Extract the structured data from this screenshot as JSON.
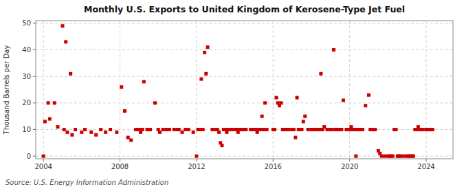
{
  "chart_data": {
    "type": "scatter",
    "title": "Monthly U.S. Exports to United Kingdom of Kerosene-Type Jet Fuel",
    "ylabel": "Thousand Barrels per Day",
    "source": "Source: U.S. Energy Information Administration",
    "color": "#cc0000",
    "marker": "square",
    "grid": true,
    "xlim": [
      2003.6,
      2025.4
    ],
    "ylim": [
      -1,
      51
    ],
    "xticks": [
      2004,
      2008,
      2012,
      2016,
      2020,
      2024
    ],
    "yticks": [
      0,
      10,
      20,
      30,
      40,
      50
    ],
    "x": [
      2004.0,
      2004.08,
      2004.25,
      2004.33,
      2004.58,
      2004.75,
      2005.0,
      2005.08,
      2005.17,
      2005.25,
      2005.42,
      2005.5,
      2005.67,
      2006.0,
      2006.17,
      2006.5,
      2006.75,
      2007.0,
      2007.25,
      2007.5,
      2007.83,
      2008.08,
      2008.25,
      2008.42,
      2008.58,
      2008.83,
      2009.0,
      2009.08,
      2009.17,
      2009.25,
      2009.42,
      2009.58,
      2009.83,
      2010.0,
      2010.08,
      2010.25,
      2010.42,
      2010.58,
      2010.83,
      2011.0,
      2011.08,
      2011.25,
      2011.42,
      2011.58,
      2011.83,
      2012.0,
      2012.08,
      2012.17,
      2012.25,
      2012.33,
      2012.42,
      2012.5,
      2012.58,
      2012.83,
      2013.0,
      2013.08,
      2013.17,
      2013.25,
      2013.33,
      2013.42,
      2013.5,
      2013.58,
      2013.67,
      2013.83,
      2014.0,
      2014.08,
      2014.17,
      2014.25,
      2014.42,
      2014.5,
      2014.58,
      2014.83,
      2015.0,
      2015.08,
      2015.17,
      2015.25,
      2015.33,
      2015.42,
      2015.5,
      2015.58,
      2015.67,
      2016.0,
      2016.08,
      2016.17,
      2016.25,
      2016.33,
      2016.42,
      2016.5,
      2016.58,
      2016.67,
      2016.83,
      2017.0,
      2017.08,
      2017.17,
      2017.25,
      2017.33,
      2017.42,
      2017.5,
      2017.58,
      2017.67,
      2017.83,
      2018.0,
      2018.08,
      2018.17,
      2018.25,
      2018.33,
      2018.42,
      2018.5,
      2018.58,
      2018.67,
      2018.83,
      2019.0,
      2019.08,
      2019.17,
      2019.25,
      2019.33,
      2019.42,
      2019.5,
      2019.58,
      2019.67,
      2019.83,
      2020.0,
      2020.08,
      2020.17,
      2020.25,
      2020.33,
      2020.42,
      2020.5,
      2020.58,
      2020.67,
      2020.83,
      2021.0,
      2021.08,
      2021.25,
      2021.33,
      2021.5,
      2021.58,
      2021.67,
      2021.83,
      2022.0,
      2022.08,
      2022.17,
      2022.25,
      2022.33,
      2022.42,
      2022.5,
      2022.58,
      2022.67,
      2022.83,
      2023.0,
      2023.08,
      2023.17,
      2023.25,
      2023.33,
      2023.42,
      2023.5,
      2023.58,
      2023.67,
      2023.83,
      2024.0,
      2024.08,
      2024.17,
      2024.25,
      2024.33
    ],
    "values": [
      0,
      13,
      20,
      14,
      20,
      11,
      49,
      10,
      43,
      9,
      31,
      8,
      10,
      9,
      10,
      9,
      8,
      10,
      9,
      10,
      9,
      26,
      17,
      7,
      6,
      10,
      10,
      9,
      10,
      28,
      10,
      10,
      20,
      10,
      9,
      10,
      10,
      10,
      10,
      10,
      10,
      9,
      10,
      10,
      9,
      0,
      10,
      10,
      29,
      10,
      39,
      31,
      41,
      10,
      10,
      10,
      9,
      5,
      4,
      10,
      10,
      9,
      10,
      10,
      10,
      10,
      9,
      10,
      10,
      10,
      10,
      10,
      10,
      10,
      9,
      10,
      10,
      15,
      10,
      20,
      10,
      10,
      10,
      22,
      20,
      19,
      20,
      10,
      10,
      10,
      10,
      10,
      10,
      7,
      22,
      10,
      10,
      10,
      13,
      15,
      10,
      10,
      10,
      10,
      10,
      10,
      10,
      31,
      10,
      11,
      10,
      10,
      10,
      40,
      10,
      10,
      10,
      10,
      10,
      21,
      10,
      10,
      11,
      10,
      10,
      0,
      10,
      10,
      10,
      10,
      19,
      23,
      10,
      10,
      10,
      2,
      1,
      0,
      0,
      0,
      0,
      0,
      0,
      10,
      10,
      0,
      0,
      0,
      0,
      0,
      0,
      0,
      0,
      0,
      10,
      10,
      11,
      10,
      10,
      10,
      10,
      10,
      10,
      10
    ]
  }
}
